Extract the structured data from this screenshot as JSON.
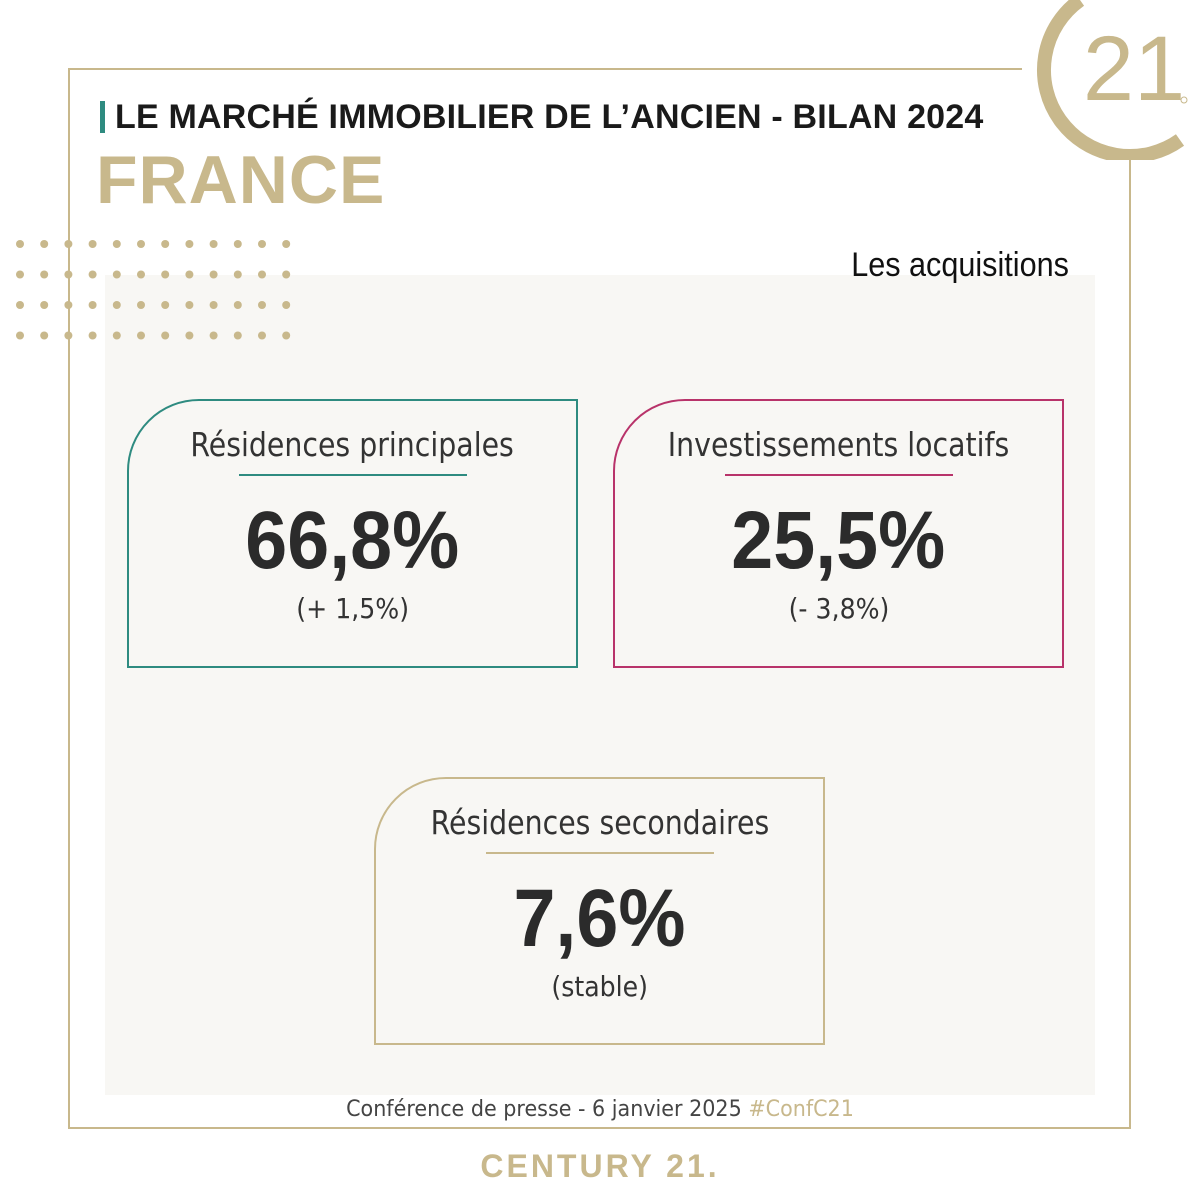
{
  "header": {
    "title": "LE MARCHÉ IMMOBILIER DE L’ANCIEN - BILAN 2024",
    "country": "FRANCE"
  },
  "logo": {
    "text": "21",
    "icon": "century21-seal-icon"
  },
  "section_title": "Les acquisitions",
  "cards": [
    {
      "label": "Résidences principales",
      "value": "66,8%",
      "change": "(+ 1,5%)",
      "color": "#2e8b80"
    },
    {
      "label": "Investissements locatifs",
      "value": "25,5%",
      "change": "(- 3,8%)",
      "color": "#b8336a"
    },
    {
      "label": "Résidences secondaires",
      "value": "7,6%",
      "change": "(stable)",
      "color": "#c8b88c"
    }
  ],
  "footer": {
    "text": "Conférence de presse - 6 janvier 2025",
    "hashtag": "#ConfC21",
    "brand": "CENTURY 21."
  },
  "colors": {
    "gold": "#c8b88c",
    "teal": "#2e8b80",
    "magenta": "#b8336a",
    "panel": "#f8f7f4"
  }
}
